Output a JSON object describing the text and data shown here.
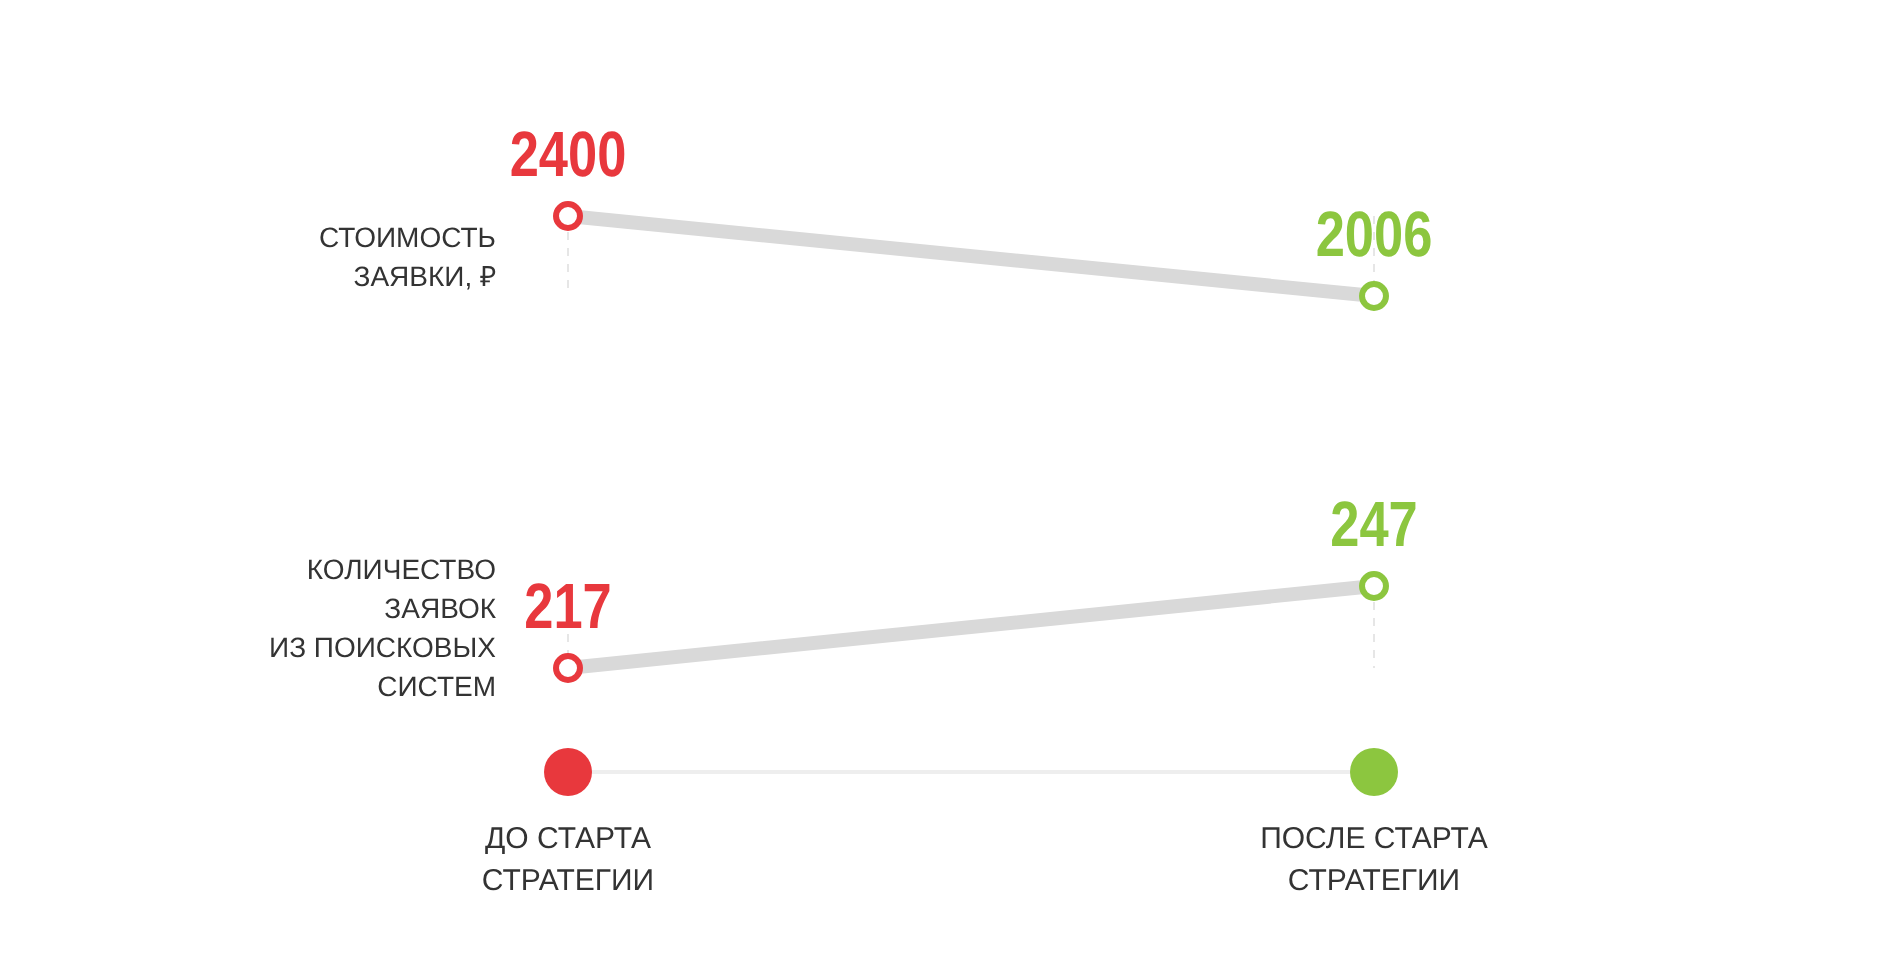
{
  "chart_data": [
    {
      "type": "line",
      "categories": [
        null,
        null
      ],
      "tick_labels": false,
      "colors": [
        "#e8383d",
        "#8cc63f"
      ],
      "grid": "x",
      "marker": "circle",
      "line_style": "solid",
      "data_labels": true,
      "series": [
        {
          "name": "СТОИМОСТЬ\nЗАЯВКИ, ₽",
          "color": "#d9d9d9",
          "values": [
            2400,
            2006
          ]
        }
      ]
    },
    {
      "type": "line",
      "categories": [
        "ДО СТАРТА\nСТРАТЕГИИ",
        "ПОСЛЕ СТАРТА\nСТРАТЕГИИ"
      ],
      "tick_labels": "x",
      "colors": [
        "#e8383d",
        "#8cc63f"
      ],
      "grid": "x",
      "marker": "circle",
      "line_style": "solid",
      "data_labels": true,
      "series": [
        {
          "name": "КОЛИЧЕСТВО\nЗАЯВОК\nИЗ ПОИСКОВЫХ\nСИСТЕМ",
          "color": "#d9d9d9",
          "values": [
            217,
            247
          ]
        }
      ]
    }
  ]
}
